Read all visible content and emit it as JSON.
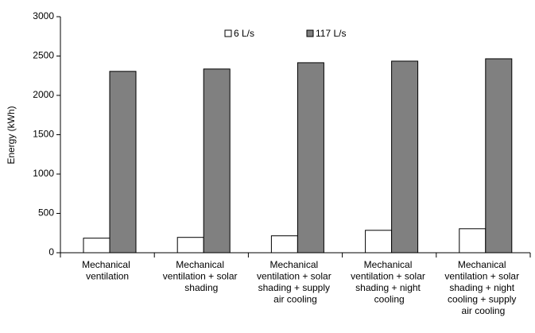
{
  "chart_data": {
    "type": "bar",
    "y_label": "Energy (kWh)",
    "categories": [
      "Mechanical ventilation",
      "Mechanical ventilation + solar shading",
      "Mechanical ventilation + solar shading + supply air cooling",
      "Mechanical ventilation + solar shading + night cooling",
      "Mechanical ventilation + solar shading + night cooling + supply air cooling"
    ],
    "series": [
      {
        "name": "6 L/s",
        "color": "#ffffff",
        "values": [
          185,
          195,
          215,
          285,
          305
        ]
      },
      {
        "name": "117 L/s",
        "color": "#808080",
        "values": [
          2305,
          2335,
          2415,
          2435,
          2465
        ]
      }
    ],
    "ylim": [
      0,
      3000
    ],
    "yticks": [
      0,
      500,
      1000,
      1500,
      2000,
      2500,
      3000
    ],
    "legend": "top"
  }
}
